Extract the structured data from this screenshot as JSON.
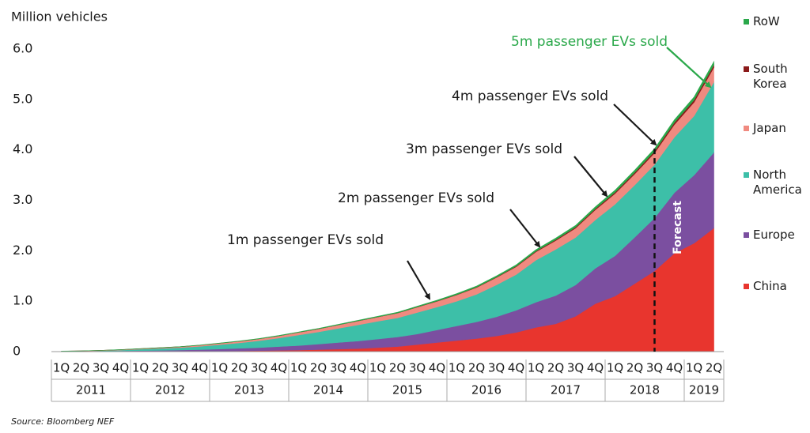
{
  "chart_data": {
    "type": "stacked-area",
    "y_axis_label": "Million vehicles",
    "source": "Source: Bloomberg NEF",
    "categories": [
      "1Q",
      "2Q",
      "3Q",
      "4Q",
      "1Q",
      "2Q",
      "3Q",
      "4Q",
      "1Q",
      "2Q",
      "3Q",
      "4Q",
      "1Q",
      "2Q",
      "3Q",
      "4Q",
      "1Q",
      "2Q",
      "3Q",
      "4Q",
      "1Q",
      "2Q",
      "3Q",
      "4Q",
      "1Q",
      "2Q",
      "3Q",
      "4Q",
      "1Q",
      "2Q",
      "3Q",
      "4Q",
      "1Q",
      "2Q"
    ],
    "category_years": [
      "2011",
      "2011",
      "2011",
      "2011",
      "2012",
      "2012",
      "2012",
      "2012",
      "2013",
      "2013",
      "2013",
      "2013",
      "2014",
      "2014",
      "2014",
      "2014",
      "2015",
      "2015",
      "2015",
      "2015",
      "2016",
      "2016",
      "2016",
      "2016",
      "2017",
      "2017",
      "2017",
      "2017",
      "2018",
      "2018",
      "2018",
      "2018",
      "2019",
      "2019"
    ],
    "series": [
      {
        "name": "China",
        "color": "#e8352e",
        "values": [
          0.001,
          0.001,
          0.002,
          0.003,
          0.004,
          0.005,
          0.007,
          0.009,
          0.012,
          0.015,
          0.02,
          0.025,
          0.03,
          0.04,
          0.05,
          0.06,
          0.08,
          0.1,
          0.14,
          0.18,
          0.22,
          0.26,
          0.31,
          0.38,
          0.48,
          0.55,
          0.7,
          0.95,
          1.1,
          1.35,
          1.6,
          1.95,
          2.15,
          2.45
        ]
      },
      {
        "name": "Europe",
        "color": "#7b4fa0",
        "values": [
          0.003,
          0.005,
          0.008,
          0.012,
          0.016,
          0.02,
          0.025,
          0.03,
          0.04,
          0.05,
          0.06,
          0.075,
          0.09,
          0.11,
          0.13,
          0.15,
          0.17,
          0.19,
          0.21,
          0.25,
          0.29,
          0.33,
          0.38,
          0.44,
          0.5,
          0.56,
          0.62,
          0.7,
          0.8,
          0.92,
          1.05,
          1.2,
          1.35,
          1.5
        ]
      },
      {
        "name": "North America",
        "color": "#3dbfa8",
        "values": [
          0.002,
          0.004,
          0.008,
          0.015,
          0.027,
          0.038,
          0.047,
          0.065,
          0.086,
          0.108,
          0.136,
          0.168,
          0.21,
          0.24,
          0.281,
          0.32,
          0.351,
          0.379,
          0.426,
          0.453,
          0.49,
          0.547,
          0.633,
          0.708,
          0.833,
          0.917,
          0.941,
          0.96,
          1.022,
          1.034,
          1.06,
          1.1,
          1.175,
          1.395
        ]
      },
      {
        "name": "Japan",
        "color": "#f08a80",
        "values": [
          0.003,
          0.004,
          0.006,
          0.008,
          0.011,
          0.014,
          0.018,
          0.022,
          0.027,
          0.032,
          0.038,
          0.045,
          0.052,
          0.06,
          0.068,
          0.077,
          0.085,
          0.095,
          0.105,
          0.115,
          0.125,
          0.135,
          0.145,
          0.155,
          0.165,
          0.175,
          0.185,
          0.2,
          0.21,
          0.22,
          0.23,
          0.25,
          0.27,
          0.29
        ]
      },
      {
        "name": "South Korea",
        "color": "#8b1a1a",
        "values": [
          0,
          0,
          0,
          0,
          0,
          0,
          0,
          0,
          0,
          0,
          0,
          0,
          0,
          0.001,
          0.001,
          0.002,
          0.002,
          0.003,
          0.004,
          0.005,
          0.006,
          0.007,
          0.009,
          0.011,
          0.013,
          0.016,
          0.019,
          0.022,
          0.026,
          0.03,
          0.035,
          0.04,
          0.045,
          0.05
        ]
      },
      {
        "name": "RoW",
        "color": "#2aa84a",
        "values": [
          0.001,
          0.001,
          0.001,
          0.002,
          0.002,
          0.003,
          0.003,
          0.004,
          0.005,
          0.005,
          0.006,
          0.007,
          0.008,
          0.009,
          0.01,
          0.011,
          0.012,
          0.013,
          0.015,
          0.017,
          0.019,
          0.021,
          0.023,
          0.026,
          0.029,
          0.032,
          0.035,
          0.038,
          0.042,
          0.046,
          0.05,
          0.055,
          0.06,
          0.065
        ]
      }
    ],
    "ylim": [
      0,
      6
    ],
    "yticks": [
      0,
      {
        "value": 1,
        "label": "1.0"
      },
      {
        "value": 2,
        "label": "2.0"
      },
      {
        "value": 3,
        "label": "3.0"
      },
      {
        "value": 4,
        "label": "4.0"
      },
      {
        "value": 5,
        "label": "5.0"
      },
      {
        "value": 6,
        "label": "6.0"
      }
    ],
    "annotations": [
      {
        "text": "1m passenger EVs sold",
        "color": "#1a1a1a"
      },
      {
        "text": "2m passenger EVs sold",
        "color": "#1a1a1a"
      },
      {
        "text": "3m passenger EVs sold",
        "color": "#1a1a1a"
      },
      {
        "text": "4m passenger EVs sold",
        "color": "#1a1a1a"
      },
      {
        "text": "5m passenger EVs sold",
        "color": "#2aa84a"
      }
    ],
    "forecast_label": "Forecast"
  }
}
